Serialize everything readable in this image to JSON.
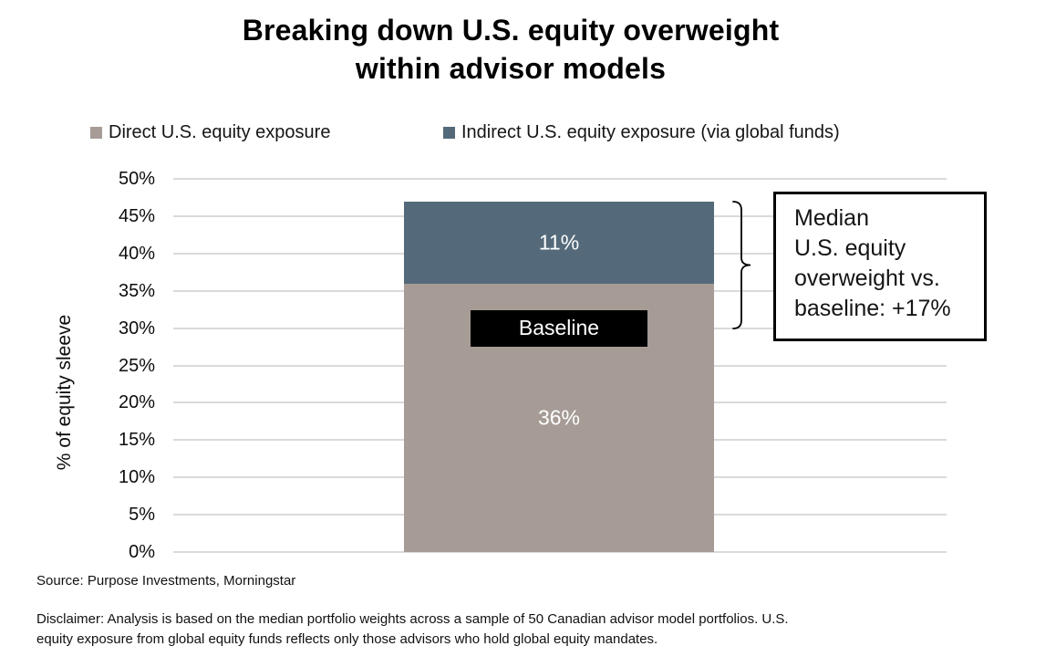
{
  "title": "Breaking down U.S. equity overweight\nwithin advisor models",
  "legend": [
    {
      "label": "Direct U.S. equity exposure",
      "color": "#A69C95"
    },
    {
      "label": "Indirect U.S. equity exposure (via global funds)",
      "color": "#546A7A"
    }
  ],
  "chart_data": {
    "type": "bar",
    "stacked": true,
    "categories": [
      ""
    ],
    "series": [
      {
        "name": "Direct U.S. equity exposure",
        "value": 36,
        "label": "36%",
        "color": "#A69C95"
      },
      {
        "name": "Indirect U.S. equity exposure (via global funds)",
        "value": 11,
        "label": "11%",
        "color": "#546A7A"
      }
    ],
    "total": 47,
    "ylabel": "% of equity sleeve",
    "ylim": [
      0,
      50
    ],
    "ytick_step": 5,
    "yticks": [
      "0%",
      "5%",
      "10%",
      "15%",
      "20%",
      "25%",
      "30%",
      "35%",
      "40%",
      "45%",
      "50%"
    ],
    "grid": "horizontal",
    "legend_position": "top",
    "baseline": {
      "label": "Baseline",
      "value": 30
    },
    "annotation": {
      "text": "Median\nU.S. equity\noverweight vs.\nbaseline: +17%",
      "brace_from": 47,
      "brace_to": 30
    }
  },
  "footer": {
    "source": "Source: Purpose Investments, Morningstar",
    "disclaimer": "Disclaimer: Analysis is based on the median portfolio weights across a sample of 50 Canadian advisor model portfolios. U.S.\nequity exposure from global equity funds reflects only those advisors who hold global equity mandates."
  },
  "colors": {
    "direct": "#A69C95",
    "indirect": "#546A7A",
    "gridline": "#DADADA",
    "baseline_box": "#000000",
    "annotation_border": "#000000",
    "text": "#111111"
  }
}
